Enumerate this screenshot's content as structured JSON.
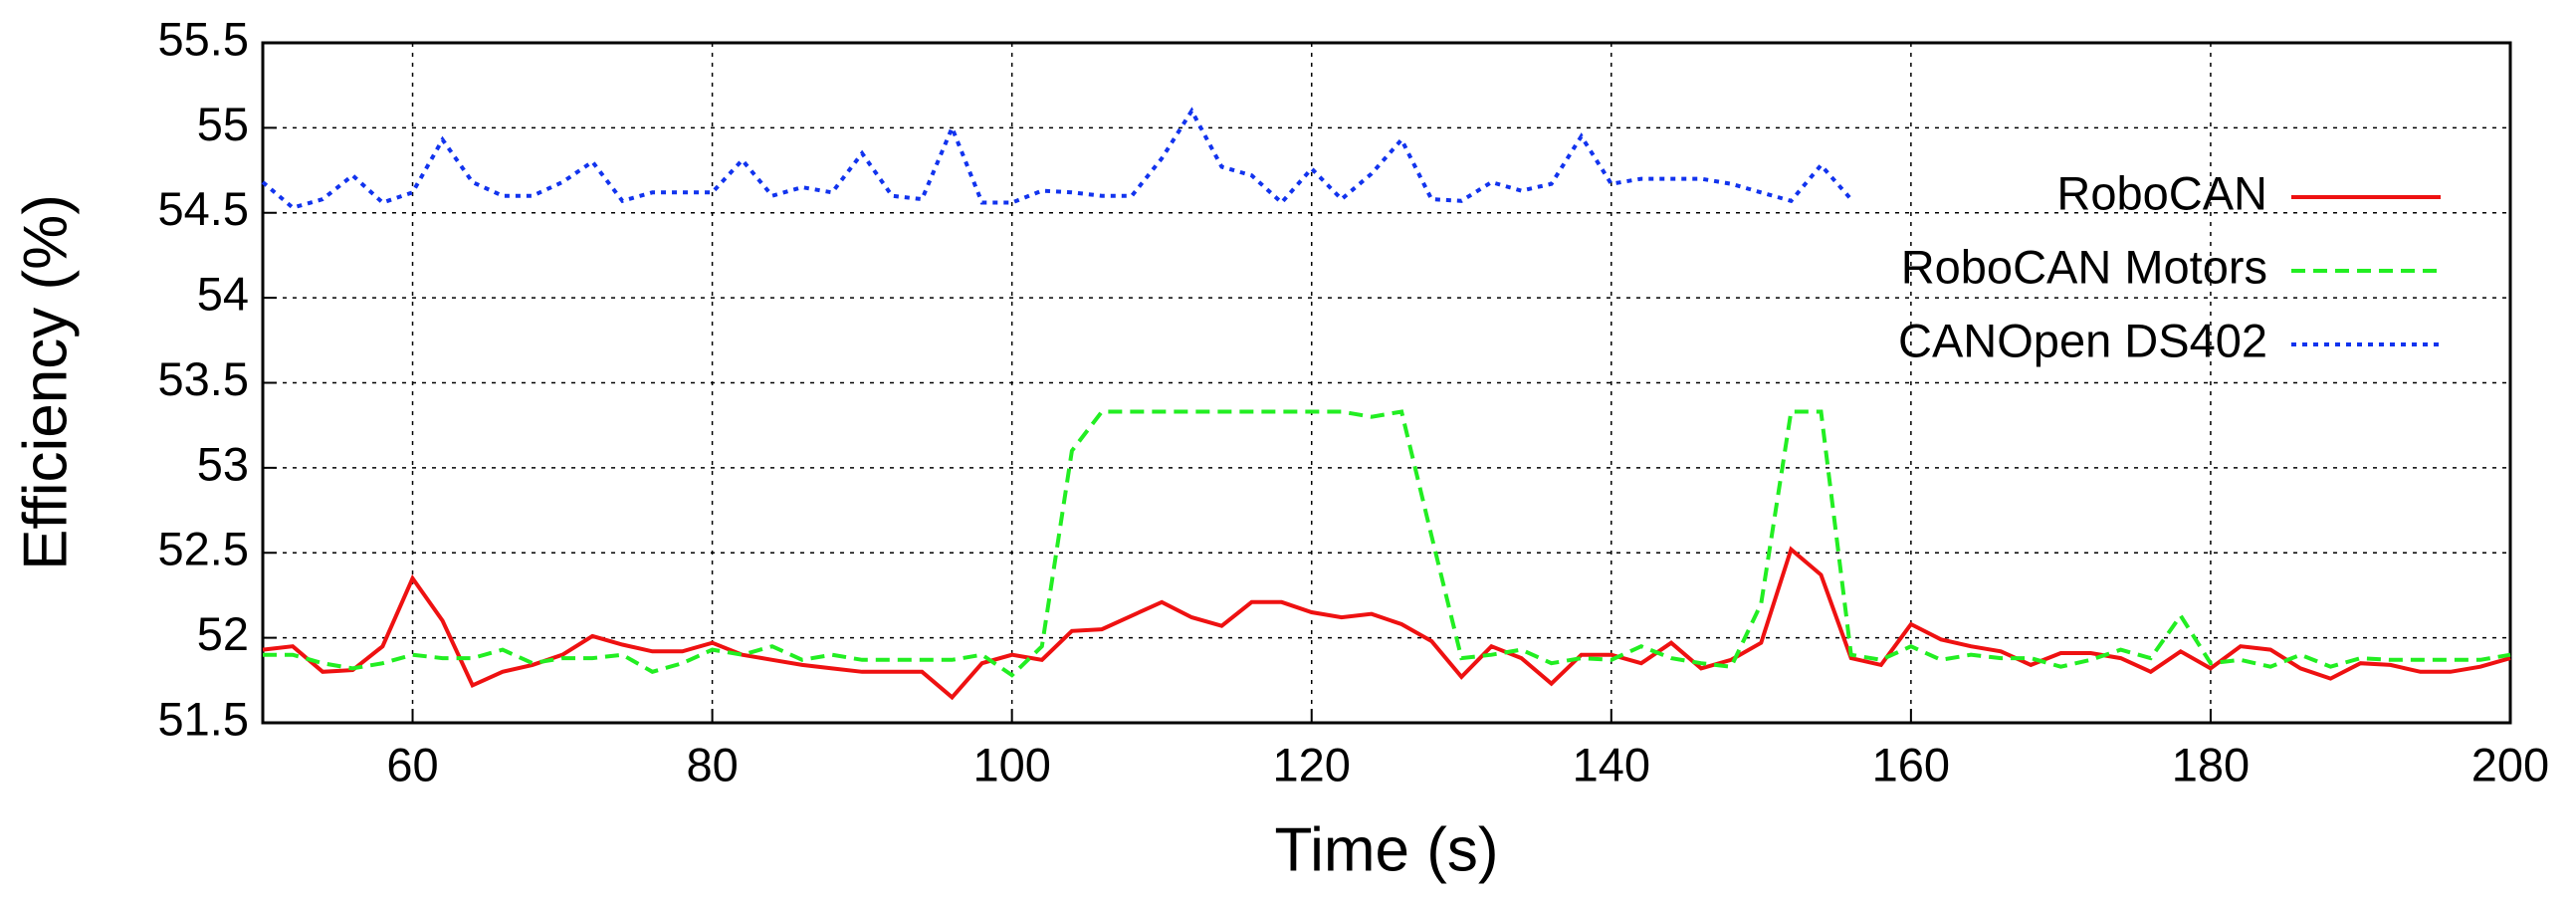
{
  "chart_data": {
    "type": "line",
    "xlabel": "Time (s)",
    "ylabel": "Efficiency (%)",
    "x": [
      50,
      52,
      54,
      56,
      58,
      60,
      62,
      64,
      66,
      68,
      70,
      72,
      74,
      76,
      78,
      80,
      82,
      84,
      86,
      88,
      90,
      92,
      94,
      96,
      98,
      100,
      102,
      104,
      106,
      108,
      110,
      112,
      114,
      116,
      118,
      120,
      122,
      124,
      126,
      128,
      130,
      132,
      134,
      136,
      138,
      140,
      142,
      144,
      146,
      148,
      150,
      152,
      154,
      156,
      158,
      160,
      162,
      164,
      166,
      168,
      170,
      172,
      174,
      176,
      178,
      180,
      182,
      184,
      186,
      188,
      190,
      192,
      194,
      196,
      198,
      200
    ],
    "series": [
      {
        "name": "RoboCAN",
        "color": "#ee1111",
        "style": "solid",
        "values": [
          51.93,
          51.95,
          51.8,
          51.81,
          51.95,
          52.35,
          52.1,
          51.72,
          51.8,
          51.84,
          51.9,
          52.01,
          51.96,
          51.92,
          51.92,
          51.97,
          51.9,
          51.87,
          51.84,
          51.82,
          51.8,
          51.8,
          51.8,
          51.65,
          51.85,
          51.9,
          51.87,
          52.04,
          52.05,
          52.13,
          52.21,
          52.12,
          52.07,
          52.21,
          52.21,
          52.15,
          52.12,
          52.14,
          52.08,
          51.98,
          51.77,
          51.95,
          51.88,
          51.73,
          51.9,
          51.9,
          51.85,
          51.97,
          51.82,
          51.87,
          51.97,
          52.52,
          52.37,
          51.88,
          51.84,
          52.08,
          51.99,
          51.95,
          51.92,
          51.84,
          51.91,
          51.91,
          51.88,
          51.8,
          51.92,
          51.82,
          51.95,
          51.93,
          51.82,
          51.76,
          51.85,
          51.84,
          51.8,
          51.8,
          51.83,
          51.88
        ]
      },
      {
        "name": "RoboCAN Motors",
        "color": "#22ee22",
        "style": "dashed",
        "values": [
          51.9,
          51.9,
          51.85,
          51.82,
          51.85,
          51.9,
          51.88,
          51.88,
          51.93,
          51.85,
          51.88,
          51.88,
          51.9,
          51.8,
          51.85,
          51.93,
          51.9,
          51.95,
          51.87,
          51.9,
          51.87,
          51.87,
          51.87,
          51.87,
          51.9,
          51.78,
          51.95,
          53.1,
          53.33,
          53.33,
          53.33,
          53.33,
          53.33,
          53.33,
          53.33,
          53.33,
          53.33,
          53.3,
          53.33,
          52.6,
          51.88,
          51.9,
          51.93,
          51.85,
          51.88,
          51.87,
          51.95,
          51.88,
          51.85,
          51.83,
          52.2,
          53.33,
          53.33,
          51.9,
          51.87,
          51.95,
          51.87,
          51.9,
          51.88,
          51.88,
          51.83,
          51.87,
          51.93,
          51.88,
          52.13,
          51.85,
          51.87,
          51.83,
          51.9,
          51.83,
          51.88,
          51.87,
          51.87,
          51.87,
          51.87,
          51.9
        ]
      },
      {
        "name": "CANOpen DS402",
        "color": "#1133ee",
        "style": "dotted",
        "values": [
          54.68,
          54.53,
          54.58,
          54.72,
          54.56,
          54.62,
          54.93,
          54.68,
          54.6,
          54.6,
          54.68,
          54.8,
          54.57,
          54.62,
          54.62,
          54.62,
          54.81,
          54.6,
          54.65,
          54.62,
          54.85,
          54.6,
          54.58,
          55.0,
          54.56,
          54.56,
          54.63,
          54.62,
          54.6,
          54.6,
          54.82,
          55.1,
          54.77,
          54.72,
          54.56,
          54.76,
          54.58,
          54.73,
          54.93,
          54.58,
          54.57,
          54.68,
          54.63,
          54.67,
          54.95,
          54.67,
          54.7,
          54.7,
          54.7,
          54.67,
          54.62,
          54.57,
          54.78,
          54.58,
          null,
          null,
          null,
          null,
          null,
          null,
          null,
          null,
          null,
          null,
          null,
          null,
          null,
          null,
          null,
          null,
          null,
          null,
          null,
          null,
          null,
          null
        ]
      }
    ],
    "xlim": [
      50,
      200
    ],
    "xticks": [
      60,
      80,
      100,
      120,
      140,
      160,
      180,
      200
    ],
    "ylim": [
      51.5,
      55.5
    ],
    "yticks": [
      51.5,
      52,
      52.5,
      53,
      53.5,
      54,
      54.5,
      55,
      55.5
    ],
    "grid": true,
    "legend": "upper right"
  }
}
